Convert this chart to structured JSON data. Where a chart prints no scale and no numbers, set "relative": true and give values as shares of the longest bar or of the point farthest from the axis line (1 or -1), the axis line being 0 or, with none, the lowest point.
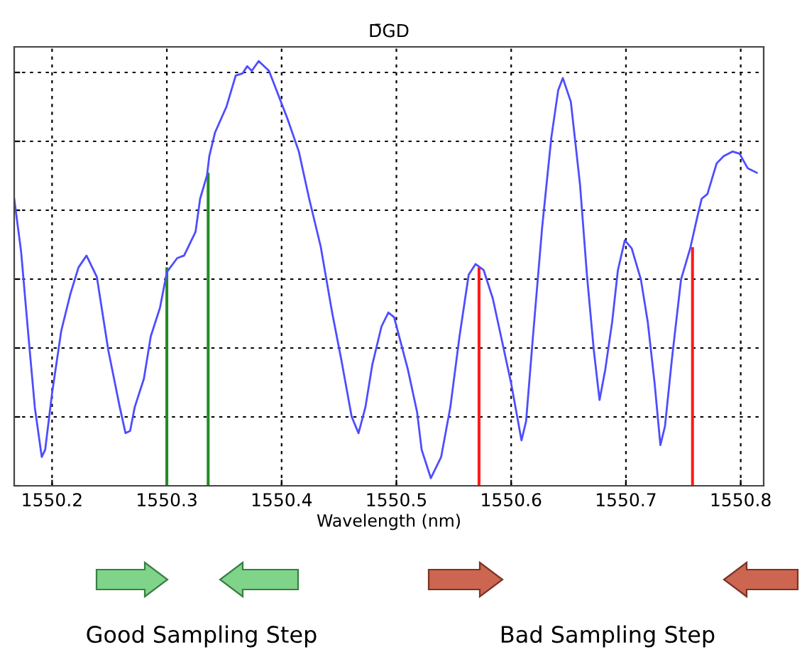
{
  "chart_data": {
    "type": "line",
    "title": "D̄GD",
    "xlabel": "Wavelength (nm)",
    "relative": true,
    "grid": true,
    "xlim": [
      1550.167,
      1550.82
    ],
    "xticks": [
      1550.2,
      1550.3,
      1550.4,
      1550.5,
      1550.6,
      1550.7,
      1550.8
    ],
    "annotations": [
      "Good Sampling Step",
      "Bad Sampling Step"
    ],
    "series": [
      {
        "color": "#4d4dff",
        "x": [
          1550.167,
          1550.173,
          1550.179,
          1550.185,
          1550.191,
          1550.194,
          1550.2,
          1550.208,
          1550.216,
          1550.223,
          1550.23,
          1550.239,
          1550.249,
          1550.259,
          1550.264,
          1550.268,
          1550.272,
          1550.28,
          1550.286,
          1550.294,
          1550.3,
          1550.309,
          1550.315,
          1550.325,
          1550.329,
          1550.335,
          1550.337,
          1550.342,
          1550.352,
          1550.36,
          1550.366,
          1550.37,
          1550.374,
          1550.38,
          1550.389,
          1550.397,
          1550.405,
          1550.415,
          1550.424,
          1550.434,
          1550.444,
          1550.452,
          1550.461,
          1550.467,
          1550.473,
          1550.479,
          1550.487,
          1550.493,
          1550.498,
          1550.51,
          1550.518,
          1550.522,
          1550.53,
          1550.539,
          1550.547,
          1550.555,
          1550.563,
          1550.569,
          1550.576,
          1550.584,
          1550.592,
          1550.6,
          1550.609,
          1550.613,
          1550.619,
          1550.627,
          1550.635,
          1550.641,
          1550.645,
          1550.652,
          1550.66,
          1550.666,
          1550.672,
          1550.677,
          1550.682,
          1550.688,
          1550.693,
          1550.699,
          1550.705,
          1550.713,
          1550.719,
          1550.725,
          1550.73,
          1550.734,
          1550.74,
          1550.748,
          1550.756,
          1550.762,
          1550.766,
          1550.771,
          1550.779,
          1550.785,
          1550.793,
          1550.799,
          1550.806,
          1550.814
        ],
        "values": [
          0.676,
          0.552,
          0.365,
          0.184,
          0.068,
          0.085,
          0.218,
          0.365,
          0.452,
          0.514,
          0.542,
          0.492,
          0.319,
          0.185,
          0.124,
          0.129,
          0.185,
          0.252,
          0.352,
          0.419,
          0.503,
          0.536,
          0.542,
          0.598,
          0.676,
          0.731,
          0.776,
          0.832,
          0.893,
          0.966,
          0.971,
          0.988,
          0.977,
          1,
          0.977,
          0.921,
          0.865,
          0.787,
          0.676,
          0.564,
          0.408,
          0.297,
          0.163,
          0.124,
          0.185,
          0.285,
          0.375,
          0.408,
          0.397,
          0.274,
          0.174,
          0.085,
          0.018,
          0.068,
          0.185,
          0.352,
          0.497,
          0.522,
          0.508,
          0.441,
          0.341,
          0.241,
          0.107,
          0.152,
          0.352,
          0.609,
          0.82,
          0.932,
          0.96,
          0.904,
          0.709,
          0.497,
          0.319,
          0.202,
          0.274,
          0.386,
          0.508,
          0.578,
          0.559,
          0.486,
          0.386,
          0.241,
          0.096,
          0.14,
          0.297,
          0.486,
          0.559,
          0.631,
          0.676,
          0.687,
          0.759,
          0.776,
          0.787,
          0.782,
          0.748,
          0.737
        ]
      },
      {
        "type": "bar",
        "color": "#228b22",
        "x": [
          1550.3,
          1550.336
        ],
        "values": [
          0.514,
          0.737
        ]
      },
      {
        "type": "bar",
        "color": "#ff1a1a",
        "x": [
          1550.572,
          1550.758
        ],
        "values": [
          0.514,
          0.562
        ]
      }
    ]
  }
}
